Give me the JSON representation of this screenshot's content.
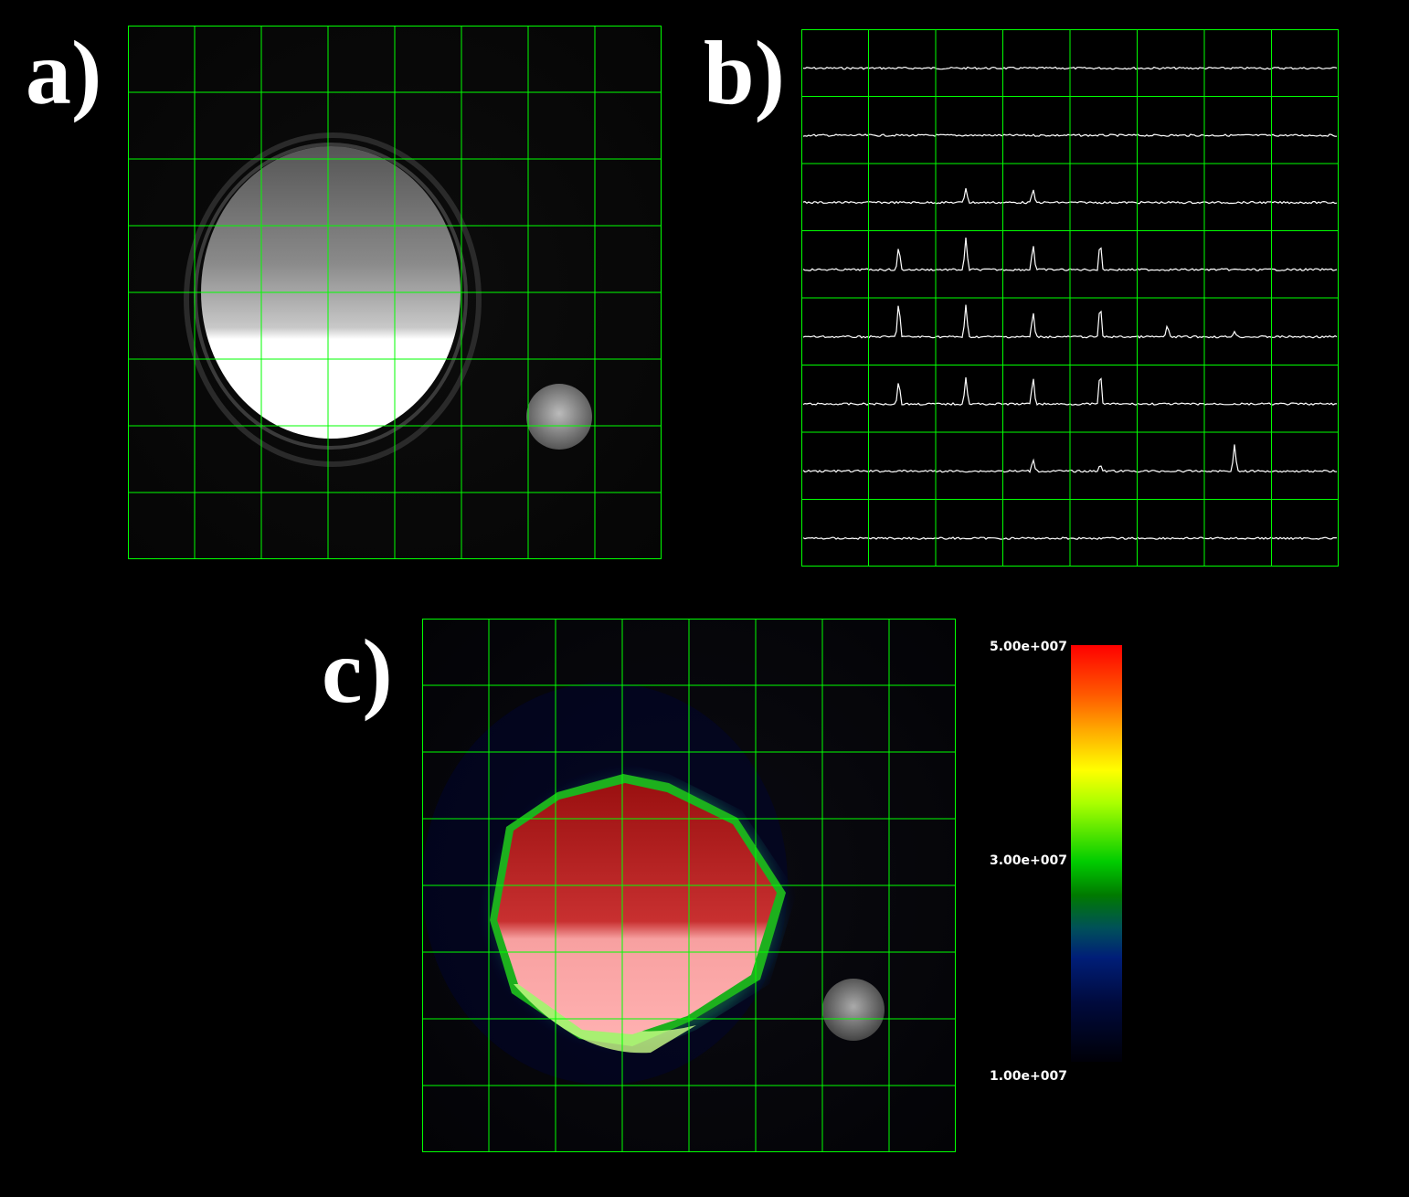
{
  "panels": {
    "a": {
      "label": "a)"
    },
    "b": {
      "label": "b)"
    },
    "c": {
      "label": "c)"
    }
  },
  "colorbar": {
    "max_label": "5.00e+007",
    "mid_label": "3.00e+007",
    "min_label": "1.00e+007"
  },
  "grid": {
    "rows": 8,
    "cols": 8,
    "color": "#00ff00"
  },
  "spectra_peaks": [
    [],
    [],
    [
      {
        "col": 2.45,
        "h": 16
      },
      {
        "col": 3.45,
        "h": 16
      }
    ],
    [
      {
        "col": 1.45,
        "h": 28
      },
      {
        "col": 2.45,
        "h": 36
      },
      {
        "col": 3.45,
        "h": 30
      },
      {
        "col": 4.45,
        "h": 34
      }
    ],
    [
      {
        "col": 1.45,
        "h": 42
      },
      {
        "col": 2.45,
        "h": 36
      },
      {
        "col": 3.45,
        "h": 30
      },
      {
        "col": 4.45,
        "h": 40
      },
      {
        "col": 5.45,
        "h": 14
      },
      {
        "col": 6.45,
        "h": 6
      }
    ],
    [
      {
        "col": 1.45,
        "h": 28
      },
      {
        "col": 2.45,
        "h": 30
      },
      {
        "col": 3.45,
        "h": 32
      },
      {
        "col": 4.45,
        "h": 40
      }
    ],
    [
      {
        "col": 3.45,
        "h": 14
      },
      {
        "col": 4.45,
        "h": 8
      },
      {
        "col": 6.45,
        "h": 30
      }
    ],
    []
  ]
}
